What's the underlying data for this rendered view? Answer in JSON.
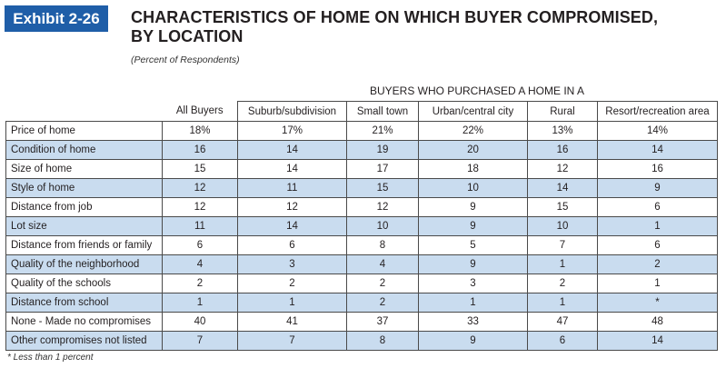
{
  "exhibit": "Exhibit 2-26",
  "title_line1": "CHARACTERISTICS OF HOME ON WHICH BUYER COMPROMISED,",
  "title_line2": "BY LOCATION",
  "subtitle": "(Percent of Respondents)",
  "group_header": "BUYERS WHO PURCHASED A HOME IN A",
  "columns": [
    "All Buyers",
    "Suburb/subdivision",
    "Small town",
    "Urban/central city",
    "Rural",
    "Resort/recreation area"
  ],
  "rows": [
    {
      "label": "Price of home",
      "values": [
        "18%",
        "17%",
        "21%",
        "22%",
        "13%",
        "14%"
      ]
    },
    {
      "label": "Condition of home",
      "values": [
        "16",
        "14",
        "19",
        "20",
        "16",
        "14"
      ]
    },
    {
      "label": "Size of home",
      "values": [
        "15",
        "14",
        "17",
        "18",
        "12",
        "16"
      ]
    },
    {
      "label": "Style of home",
      "values": [
        "12",
        "11",
        "15",
        "10",
        "14",
        "9"
      ]
    },
    {
      "label": "Distance from job",
      "values": [
        "12",
        "12",
        "12",
        "9",
        "15",
        "6"
      ]
    },
    {
      "label": "Lot size",
      "values": [
        "11",
        "14",
        "10",
        "9",
        "10",
        "1"
      ]
    },
    {
      "label": "Distance from friends or family",
      "values": [
        "6",
        "6",
        "8",
        "5",
        "7",
        "6"
      ]
    },
    {
      "label": "Quality of the neighborhood",
      "values": [
        "4",
        "3",
        "4",
        "9",
        "1",
        "2"
      ]
    },
    {
      "label": "Quality of the schools",
      "values": [
        "2",
        "2",
        "2",
        "3",
        "2",
        "1"
      ]
    },
    {
      "label": "Distance from school",
      "values": [
        "1",
        "1",
        "2",
        "1",
        "1",
        "*"
      ]
    },
    {
      "label": "None - Made no compromises",
      "values": [
        "40",
        "41",
        "37",
        "33",
        "47",
        "48"
      ]
    },
    {
      "label": "Other compromises not listed",
      "values": [
        "7",
        "7",
        "8",
        "9",
        "6",
        "14"
      ]
    }
  ],
  "footnote": "* Less than 1 percent",
  "colors": {
    "exhibit_bg": "#1f5ea8",
    "alt_row": "#c9dcef"
  }
}
